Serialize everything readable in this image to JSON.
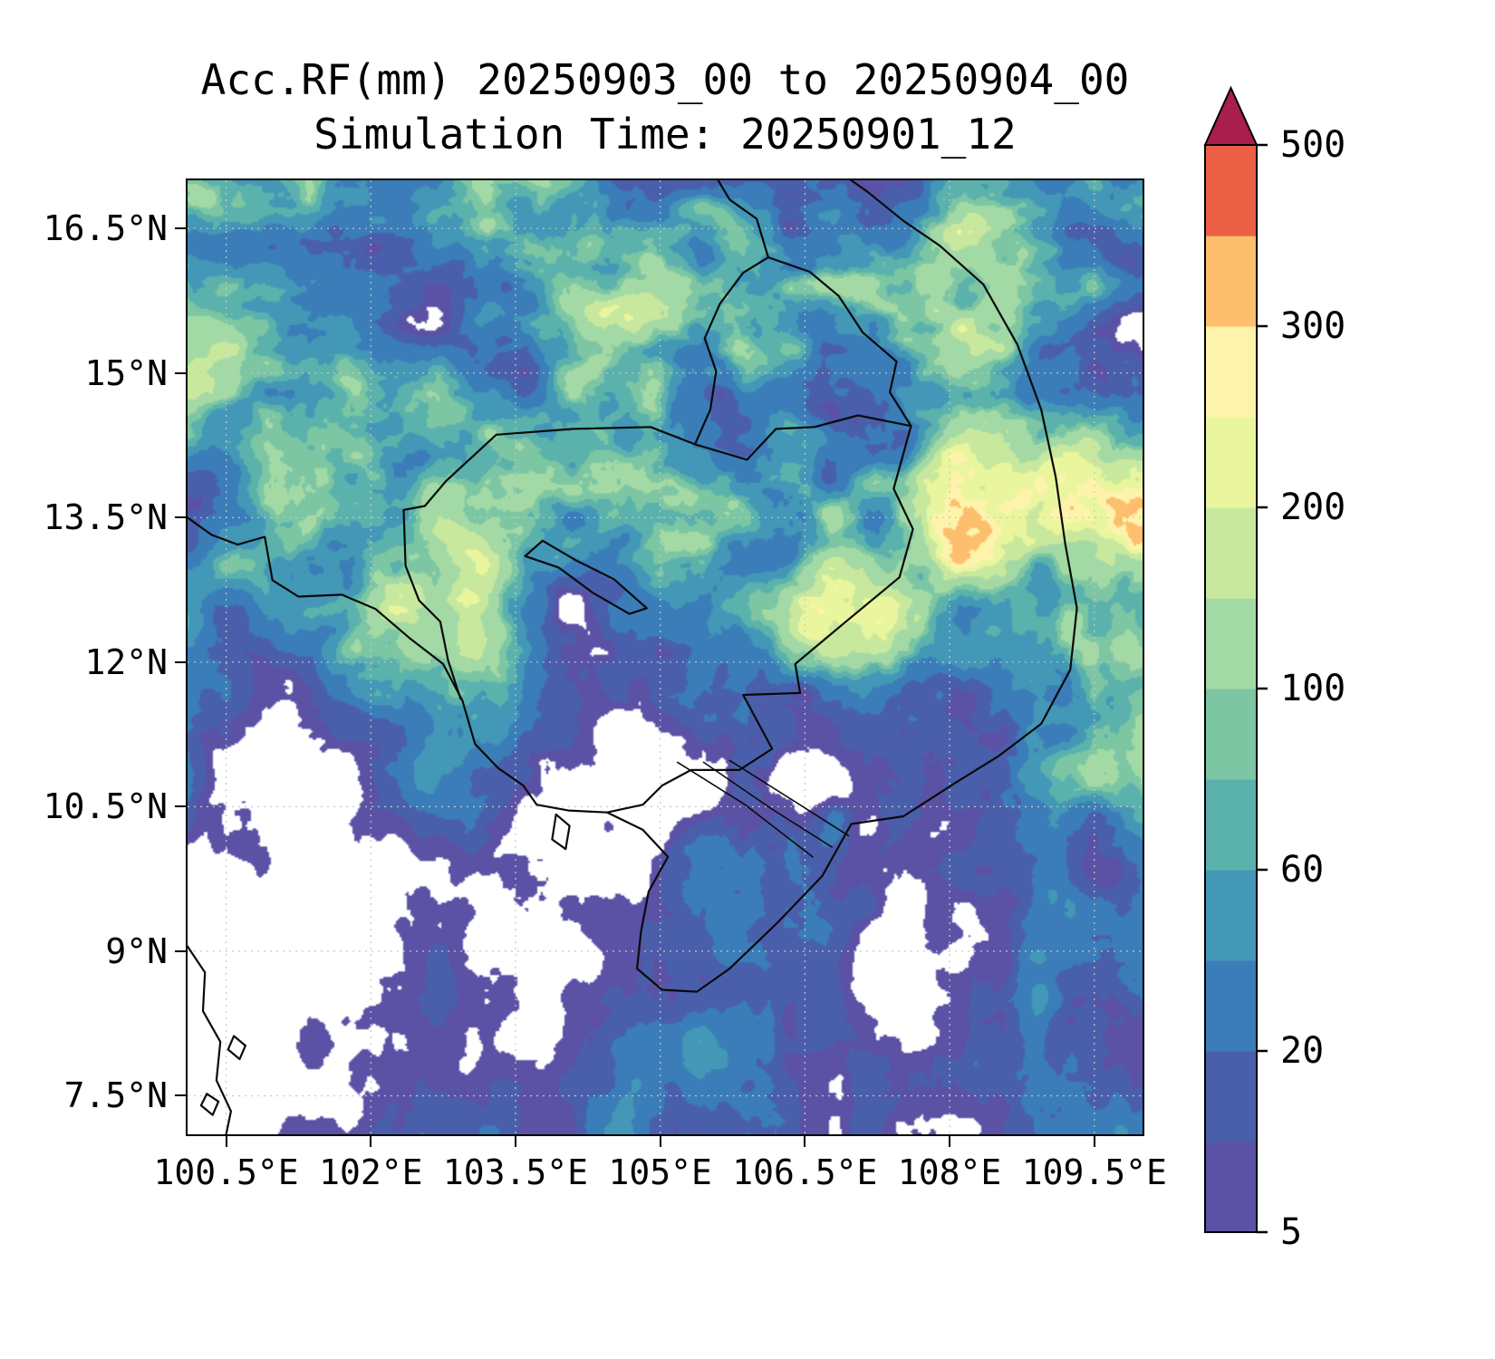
{
  "title": {
    "line1": "Acc.RF(mm) 20250903_00 to 20250904_00",
    "line2": "Simulation Time: 20250901_12"
  },
  "chart_data": {
    "type": "heatmap",
    "title": "Acc.RF(mm) 20250903_00 to 20250904_00",
    "subtitle": "Simulation Time: 20250901_12",
    "units": "mm",
    "description": "Filled-contour map of 24-hour accumulated rainfall (mm) over Cambodia, southern Laos, southern Vietnam and the Gulf of Thailand. Widespread 5-60 mm (purple/blue) over most land, maxima of 150-250 mm (green/yellow) over the central highlands near 14-15N 105.5-106.5E and along the Vietnam coast near 11.5-13.5N 108-109E, with dry (white) gaps over the western gulf and scattered interior areas.",
    "x_axis": {
      "tick_labels": [
        "100.5°E",
        "102°E",
        "103.5°E",
        "105°E",
        "106.5°E",
        "108°E",
        "109.5°E"
      ],
      "tick_values": [
        100.5,
        102.0,
        103.5,
        105.0,
        106.5,
        108.0,
        109.5
      ],
      "range": [
        100.1,
        110.0
      ]
    },
    "y_axis": {
      "tick_labels": [
        "16.5°N",
        "15°N",
        "13.5°N",
        "12°N",
        "10.5°N",
        "9°N",
        "7.5°N"
      ],
      "tick_values": [
        16.5,
        15.0,
        13.5,
        12.0,
        10.5,
        9.0,
        7.5
      ],
      "range": [
        7.1,
        17.0
      ]
    },
    "grid": true,
    "colorbar": {
      "levels": [
        5,
        10,
        20,
        40,
        60,
        80,
        100,
        150,
        200,
        250,
        300,
        400,
        500
      ],
      "colors": [
        "#5b52a6",
        "#4a5fab",
        "#3a7db8",
        "#4397b7",
        "#5bb2ac",
        "#7cc6a4",
        "#a3d9a4",
        "#c8e89e",
        "#e9f69e",
        "#fef3ab",
        "#fdbe6e",
        "#eb5f45"
      ],
      "over_color": "#a91e4c",
      "tick_labels": [
        "5",
        "20",
        "60",
        "100",
        "200",
        "300",
        "500"
      ],
      "tick_values": [
        5,
        20,
        60,
        100,
        200,
        300,
        500
      ]
    },
    "map_outlines": [
      {
        "name": "coast-gulf-of-thailand-vietnam",
        "closed": false,
        "points": [
          [
            100.1,
            13.5
          ],
          [
            100.35,
            13.32
          ],
          [
            100.62,
            13.22
          ],
          [
            100.9,
            13.3
          ],
          [
            100.98,
            12.85
          ],
          [
            101.25,
            12.68
          ],
          [
            101.7,
            12.7
          ],
          [
            102.05,
            12.55
          ],
          [
            102.4,
            12.25
          ],
          [
            102.75,
            11.98
          ],
          [
            102.95,
            11.6
          ],
          [
            103.08,
            11.15
          ],
          [
            103.32,
            10.9
          ],
          [
            103.58,
            10.72
          ],
          [
            103.72,
            10.52
          ],
          [
            104.05,
            10.46
          ],
          [
            104.45,
            10.44
          ],
          [
            104.82,
            10.26
          ],
          [
            105.08,
            9.98
          ],
          [
            104.88,
            9.62
          ],
          [
            104.8,
            9.2
          ],
          [
            104.76,
            8.82
          ],
          [
            105.02,
            8.6
          ],
          [
            105.38,
            8.58
          ],
          [
            105.72,
            8.82
          ],
          [
            106.2,
            9.28
          ],
          [
            106.68,
            9.78
          ],
          [
            106.98,
            10.32
          ],
          [
            107.52,
            10.4
          ],
          [
            108.08,
            10.76
          ],
          [
            108.5,
            11.02
          ],
          [
            108.95,
            11.36
          ],
          [
            109.25,
            11.92
          ],
          [
            109.32,
            12.56
          ],
          [
            109.2,
            13.22
          ],
          [
            109.1,
            13.92
          ],
          [
            108.95,
            14.62
          ],
          [
            108.7,
            15.3
          ],
          [
            108.35,
            15.92
          ],
          [
            107.9,
            16.32
          ],
          [
            107.52,
            16.58
          ],
          [
            107.15,
            16.88
          ],
          [
            106.98,
            17.0
          ]
        ]
      },
      {
        "name": "coast-malay-peninsula",
        "closed": false,
        "points": [
          [
            100.1,
            9.05
          ],
          [
            100.28,
            8.78
          ],
          [
            100.26,
            8.38
          ],
          [
            100.44,
            8.06
          ],
          [
            100.4,
            7.66
          ],
          [
            100.55,
            7.34
          ],
          [
            100.5,
            7.1
          ]
        ]
      },
      {
        "name": "island-a",
        "closed": true,
        "points": [
          [
            100.58,
            8.12
          ],
          [
            100.7,
            8.02
          ],
          [
            100.64,
            7.88
          ],
          [
            100.52,
            7.98
          ]
        ]
      },
      {
        "name": "island-b",
        "closed": true,
        "points": [
          [
            100.3,
            7.52
          ],
          [
            100.42,
            7.44
          ],
          [
            100.36,
            7.3
          ],
          [
            100.24,
            7.4
          ]
        ]
      },
      {
        "name": "island-phu-quoc",
        "closed": true,
        "points": [
          [
            103.92,
            10.42
          ],
          [
            104.06,
            10.3
          ],
          [
            104.02,
            10.06
          ],
          [
            103.88,
            10.16
          ]
        ]
      },
      {
        "name": "border-thailand-cambodia",
        "closed": false,
        "points": [
          [
            102.93,
            11.62
          ],
          [
            102.8,
            12.02
          ],
          [
            102.72,
            12.42
          ],
          [
            102.5,
            12.64
          ],
          [
            102.36,
            13.0
          ],
          [
            102.34,
            13.58
          ],
          [
            102.56,
            13.62
          ],
          [
            102.78,
            13.88
          ],
          [
            103.3,
            14.36
          ],
          [
            104.1,
            14.42
          ],
          [
            104.9,
            14.44
          ],
          [
            105.36,
            14.26
          ]
        ]
      },
      {
        "name": "border-laos-thailand",
        "closed": false,
        "points": [
          [
            105.36,
            14.26
          ],
          [
            105.52,
            14.62
          ],
          [
            105.58,
            15.02
          ],
          [
            105.46,
            15.36
          ],
          [
            105.62,
            15.72
          ],
          [
            105.86,
            16.04
          ],
          [
            106.12,
            16.2
          ],
          [
            106.0,
            16.6
          ],
          [
            105.72,
            16.8
          ],
          [
            105.6,
            17.0
          ]
        ]
      },
      {
        "name": "border-laos-vietnam",
        "closed": false,
        "points": [
          [
            106.12,
            16.2
          ],
          [
            106.55,
            16.05
          ],
          [
            106.85,
            15.8
          ],
          [
            107.1,
            15.42
          ],
          [
            107.45,
            15.12
          ],
          [
            107.38,
            14.8
          ],
          [
            107.6,
            14.45
          ]
        ]
      },
      {
        "name": "border-cambodia-laos",
        "closed": false,
        "points": [
          [
            105.36,
            14.26
          ],
          [
            105.9,
            14.1
          ],
          [
            106.2,
            14.42
          ],
          [
            106.6,
            14.44
          ],
          [
            107.05,
            14.56
          ],
          [
            107.6,
            14.45
          ]
        ]
      },
      {
        "name": "border-cambodia-vietnam",
        "closed": false,
        "points": [
          [
            107.6,
            14.45
          ],
          [
            107.42,
            13.8
          ],
          [
            107.62,
            13.38
          ],
          [
            107.48,
            12.88
          ],
          [
            106.9,
            12.4
          ],
          [
            106.4,
            11.98
          ],
          [
            106.45,
            11.68
          ],
          [
            105.86,
            11.66
          ],
          [
            106.16,
            11.1
          ],
          [
            105.82,
            10.88
          ],
          [
            105.32,
            10.88
          ],
          [
            105.02,
            10.72
          ],
          [
            104.82,
            10.52
          ],
          [
            104.45,
            10.44
          ]
        ]
      },
      {
        "name": "lake-tonle-sap",
        "closed": true,
        "points": [
          [
            103.6,
            13.1
          ],
          [
            103.95,
            12.98
          ],
          [
            104.3,
            12.72
          ],
          [
            104.68,
            12.5
          ],
          [
            104.86,
            12.56
          ],
          [
            104.52,
            12.86
          ],
          [
            104.12,
            13.06
          ],
          [
            103.78,
            13.26
          ]
        ]
      },
      {
        "name": "mekong-channel-1",
        "closed": false,
        "points": [
          [
            105.18,
            10.96
          ],
          [
            105.88,
            10.52
          ],
          [
            106.58,
            9.98
          ]
        ]
      },
      {
        "name": "mekong-channel-2",
        "closed": false,
        "points": [
          [
            105.45,
            10.96
          ],
          [
            106.15,
            10.48
          ],
          [
            106.78,
            10.08
          ]
        ]
      },
      {
        "name": "mekong-channel-3",
        "closed": false,
        "points": [
          [
            105.72,
            10.98
          ],
          [
            106.4,
            10.55
          ],
          [
            106.95,
            10.2
          ]
        ]
      }
    ]
  }
}
